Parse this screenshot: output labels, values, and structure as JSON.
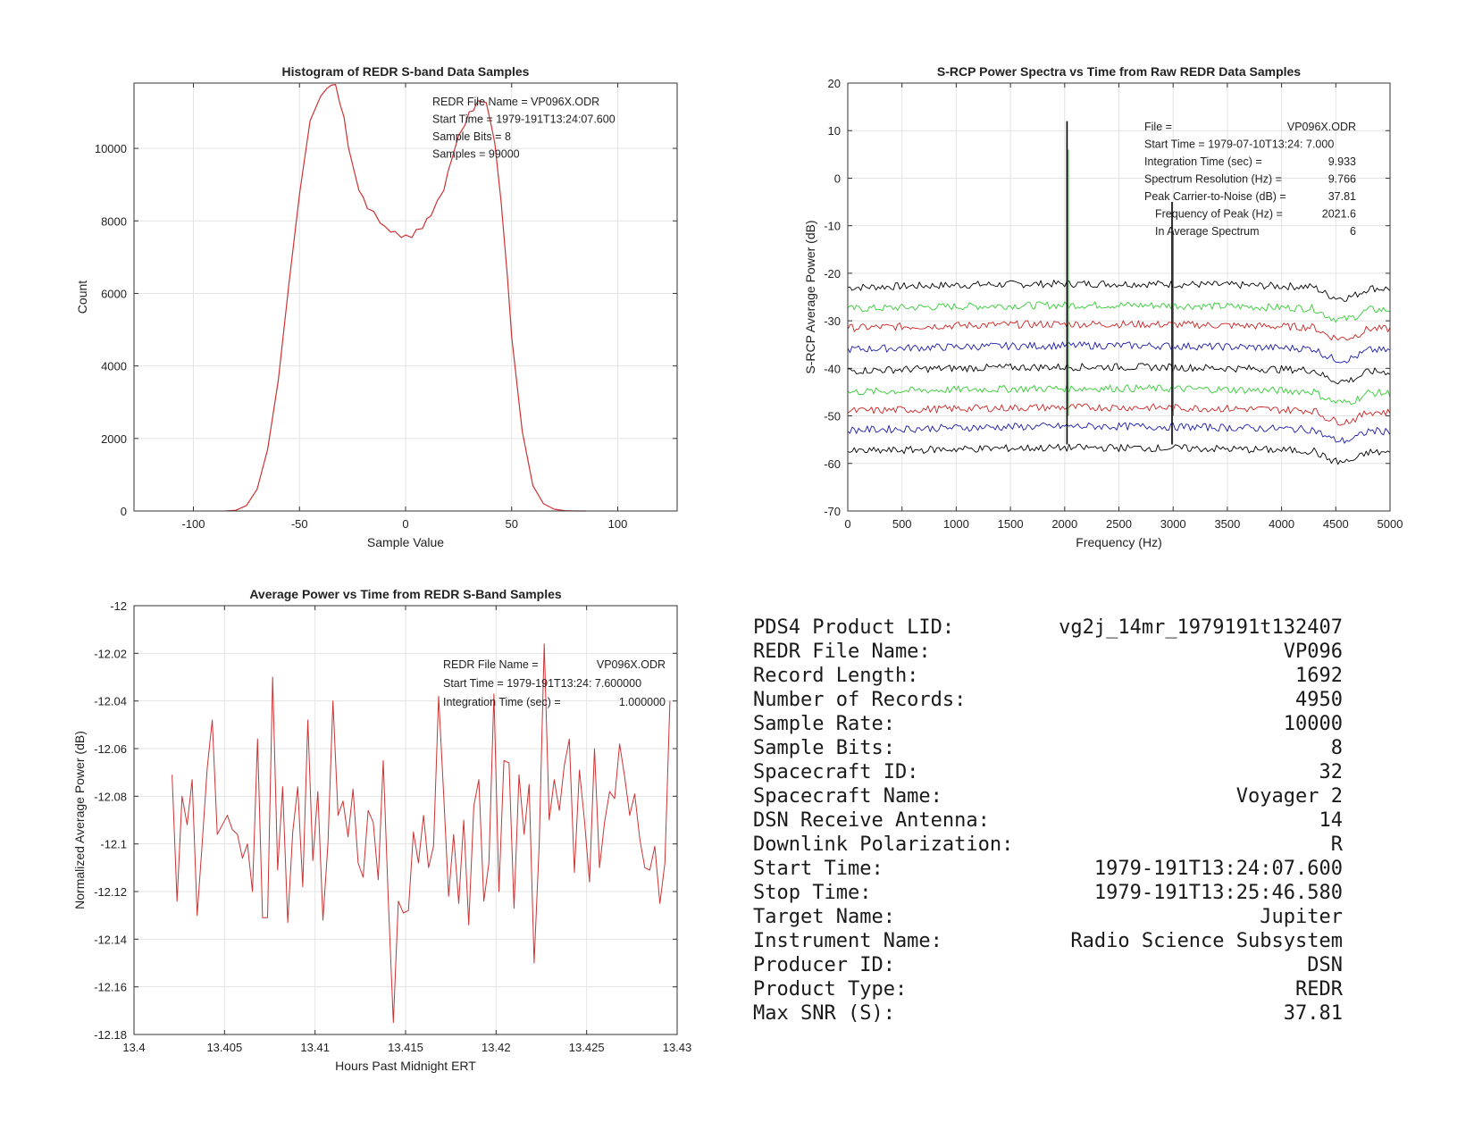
{
  "charts": [
    {
      "id": "histogram",
      "type": "line",
      "title": "Histogram of REDR S-band Data Samples",
      "xlabel": "Sample Value",
      "ylabel": "Count",
      "xlim": [
        -128,
        128
      ],
      "ylim": [
        0,
        11800
      ],
      "xticks": [
        -100,
        -50,
        0,
        50,
        100
      ],
      "yticks": [
        0,
        2000,
        4000,
        6000,
        8000,
        10000
      ],
      "grid": true,
      "annotations": [
        "REDR File Name = VP096X.ODR",
        "Start Time = 1979-191T13:24:07.600",
        "Sample Bits = 8",
        "Samples = 99000"
      ],
      "series": [
        {
          "color": "#cc3333",
          "x": [
            -85,
            -80,
            -75,
            -70,
            -65,
            -60,
            -55,
            -50,
            -45,
            -40,
            -37,
            -35,
            -33,
            -31,
            -29,
            -27,
            -25,
            -22,
            -20,
            -18,
            -15,
            -12,
            -10,
            -7,
            -5,
            -2,
            0,
            3,
            5,
            8,
            10,
            12,
            15,
            18,
            20,
            22,
            25,
            28,
            30,
            32,
            34,
            36,
            38,
            40,
            42,
            45,
            48,
            50,
            55,
            60,
            65,
            70,
            75,
            80,
            85
          ],
          "y": [
            0,
            20,
            150,
            600,
            1700,
            3600,
            6200,
            8800,
            10700,
            11500,
            11600,
            11800,
            11700,
            11300,
            10800,
            10100,
            9500,
            8900,
            8600,
            8400,
            8200,
            8000,
            7800,
            7750,
            7650,
            7600,
            7550,
            7600,
            7700,
            7850,
            8000,
            8200,
            8500,
            8900,
            9300,
            9800,
            10300,
            10700,
            10950,
            11100,
            11250,
            11350,
            11200,
            10800,
            10100,
            8600,
            6400,
            4800,
            2200,
            700,
            200,
            50,
            10,
            0,
            0
          ]
        }
      ]
    },
    {
      "id": "spectra",
      "type": "line",
      "title": "S-RCP Power Spectra vs Time from Raw REDR Data Samples",
      "xlabel": "Frequency (Hz)",
      "ylabel": "S-RCP Average Power (dB)",
      "xlim": [
        0,
        5000
      ],
      "ylim": [
        -70,
        20
      ],
      "xticks": [
        0,
        500,
        1000,
        1500,
        2000,
        2500,
        3000,
        3500,
        4000,
        4500,
        5000
      ],
      "yticks": [
        -70,
        -60,
        -50,
        -40,
        -30,
        -20,
        -10,
        0,
        10,
        20
      ],
      "grid": true,
      "spike_frequencies": [
        2021.6,
        2990
      ],
      "peak_value": 12,
      "secondary_peak_value": -5,
      "annotations": [
        {
          "label": "File =",
          "value": "VP096X.ODR"
        },
        {
          "label": "Start Time = 1979-07-10T13:24: 7.000",
          "value": ""
        },
        {
          "label": "Integration Time (sec) =",
          "value": "9.933"
        },
        {
          "label": "Spectrum Resolution (Hz) =",
          "value": "9.766"
        },
        {
          "label": "Peak Carrier-to-Noise (dB) =",
          "value": "37.81"
        },
        {
          "label": "Frequency of Peak (Hz) =",
          "value": "2021.6"
        },
        {
          "label": "In Average Spectrum",
          "value": "6"
        }
      ],
      "series": [
        {
          "color": "#000000",
          "offset": -23
        },
        {
          "color": "#33cc33",
          "offset": -27.5
        },
        {
          "color": "#cc2222",
          "offset": -31.5
        },
        {
          "color": "#1a1aaa",
          "offset": -36
        },
        {
          "color": "#000000",
          "offset": -40.5
        },
        {
          "color": "#33cc33",
          "offset": -45
        },
        {
          "color": "#cc2222",
          "offset": -49
        },
        {
          "color": "#1a1aaa",
          "offset": -53
        },
        {
          "color": "#000000",
          "offset": -57.5
        }
      ]
    },
    {
      "id": "power",
      "type": "line",
      "title": "Average Power vs Time from REDR S-Band Samples",
      "xlabel": "Hours Past Midnight ERT",
      "ylabel": "Normalized Average Power (dB)",
      "xlim": [
        13.4,
        13.43
      ],
      "ylim": [
        -12.18,
        -12
      ],
      "xticks": [
        13.4,
        13.405,
        13.41,
        13.415,
        13.42,
        13.425,
        13.43
      ],
      "yticks": [
        -12.18,
        -12.16,
        -12.14,
        -12.12,
        -12.1,
        -12.08,
        -12.06,
        -12.04,
        -12.02,
        -12
      ],
      "grid": true,
      "annotations": [
        {
          "label": "REDR File Name =",
          "value": "VP096X.ODR"
        },
        {
          "label": "Start Time = 1979-191T13:24: 7.600000",
          "value": ""
        },
        {
          "label": "Integration Time (sec) =",
          "value": "1.000000"
        }
      ],
      "series": [
        {
          "color": "#cc3333",
          "x_start": 13.4021,
          "x_step": 0.0002778,
          "y": [
            -12.071,
            -12.124,
            -12.08,
            -12.092,
            -12.073,
            -12.13,
            -12.1,
            -12.068,
            -12.048,
            -12.096,
            -12.092,
            -12.088,
            -12.094,
            -12.096,
            -12.106,
            -12.1,
            -12.12,
            -12.056,
            -12.131,
            -12.131,
            -12.03,
            -12.111,
            -12.076,
            -12.133,
            -12.095,
            -12.076,
            -12.118,
            -12.048,
            -12.107,
            -12.078,
            -12.132,
            -12.1,
            -12.04,
            -12.088,
            -12.082,
            -12.097,
            -12.077,
            -12.108,
            -12.114,
            -12.086,
            -12.091,
            -12.115,
            -12.065,
            -12.124,
            -12.175,
            -12.124,
            -12.129,
            -12.128,
            -12.095,
            -12.108,
            -12.088,
            -12.11,
            -12.101,
            -12.038,
            -12.079,
            -12.122,
            -12.096,
            -12.125,
            -12.09,
            -12.134,
            -12.084,
            -12.073,
            -12.124,
            -12.108,
            -12.037,
            -12.12,
            -12.065,
            -12.066,
            -12.127,
            -12.071,
            -12.096,
            -12.075,
            -12.15,
            -12.1,
            -12.016,
            -12.09,
            -12.073,
            -12.086,
            -12.067,
            -12.056,
            -12.112,
            -12.069,
            -12.09,
            -12.116,
            -12.06,
            -12.11,
            -12.091,
            -12.078,
            -12.081,
            -12.058,
            -12.072,
            -12.088,
            -12.079,
            -12.098,
            -12.11,
            -12.111,
            -12.101,
            -12.125,
            -12.108,
            -12.04
          ]
        }
      ]
    }
  ],
  "info": [
    {
      "label": "PDS4 Product LID:",
      "value": "vg2j_14mr_1979191t132407"
    },
    {
      "label": "REDR File Name:",
      "value": "VP096"
    },
    {
      "label": "Record Length:",
      "value": "1692"
    },
    {
      "label": "Number of Records:",
      "value": "4950"
    },
    {
      "label": "Sample Rate:",
      "value": "10000"
    },
    {
      "label": "Sample Bits:",
      "value": "8"
    },
    {
      "label": "Spacecraft ID:",
      "value": "32"
    },
    {
      "label": "Spacecraft Name:",
      "value": "Voyager 2"
    },
    {
      "label": "DSN Receive Antenna:",
      "value": "14"
    },
    {
      "label": "Downlink Polarization:",
      "value": "R"
    },
    {
      "label": "Start Time:",
      "value": "1979-191T13:24:07.600"
    },
    {
      "label": "Stop Time:",
      "value": "1979-191T13:25:46.580"
    },
    {
      "label": "Target Name:",
      "value": "Jupiter"
    },
    {
      "label": "Instrument Name:",
      "value": "Radio Science Subsystem"
    },
    {
      "label": "Producer ID:",
      "value": "DSN"
    },
    {
      "label": "Product Type:",
      "value": "REDR"
    },
    {
      "label": "Max SNR (S):",
      "value": "37.81"
    }
  ]
}
